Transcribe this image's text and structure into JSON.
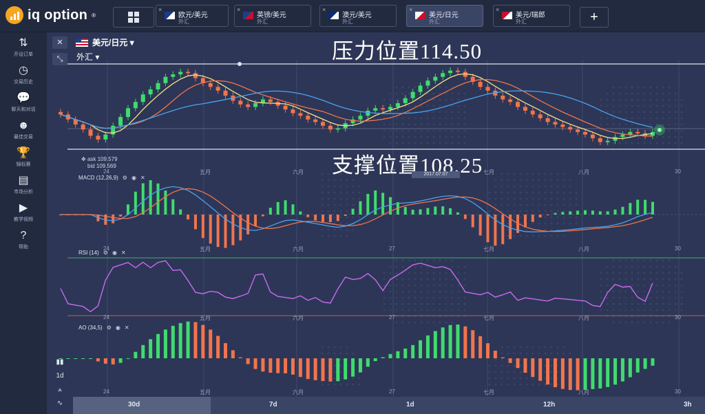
{
  "app": {
    "logo_text": "iq option",
    "logo_mark": "®"
  },
  "tabs": [
    {
      "name": "欧元/美元",
      "sub": "外汇",
      "active": false,
      "flags": [
        "#1a3a8f",
        "#ffffff"
      ]
    },
    {
      "name": "英镑/美元",
      "sub": "外汇",
      "active": false,
      "flags": [
        "#1f3e8a",
        "#c8102e"
      ]
    },
    {
      "name": "澳元/美元",
      "sub": "外汇",
      "active": false,
      "flags": [
        "#0c2a7a",
        "#ffffff"
      ]
    },
    {
      "name": "美元/日元",
      "sub": "外汇",
      "active": true,
      "flags": [
        "#ffffff",
        "#c8102e"
      ]
    },
    {
      "name": "美元/瑞郎",
      "sub": "外汇",
      "active": false,
      "flags": [
        "#c8102e",
        "#ffffff"
      ]
    }
  ],
  "tab_close_glyph": "×",
  "plus_glyph": "+",
  "sidebar": [
    {
      "icon": "⇅",
      "icon_name": "arrows-updown-icon",
      "label": "开设订单"
    },
    {
      "icon": "◷",
      "icon_name": "clock-icon",
      "label": "交易历史"
    },
    {
      "icon": "💬",
      "icon_name": "chat-icon",
      "label": "聊天和对话"
    },
    {
      "icon": "☻",
      "icon_name": "trader-icon",
      "label": "最佳交易"
    },
    {
      "icon": "🏆",
      "icon_name": "trophy-icon",
      "label": "锦标赛"
    },
    {
      "icon": "▤",
      "icon_name": "market-icon",
      "label": "市场分析"
    },
    {
      "icon": "▶",
      "icon_name": "play-icon",
      "label": "教学视频"
    },
    {
      "icon": "?",
      "icon_name": "help-icon",
      "label": "帮助"
    }
  ],
  "chart_header": {
    "close_glyph": "✕",
    "expand_glyph": "⤡",
    "pair": "美元/日元 ▾",
    "market": "外汇 ▾"
  },
  "annotations": {
    "resistance": "压力位置114.50",
    "support": "支撑位置108.25"
  },
  "quote": {
    "ask": "ask 109.579",
    "bid": "bid 109.569",
    "icon": "✥"
  },
  "date_badge": "2017.07.07",
  "indicators": {
    "macd": "MACD (12,26,9)",
    "rsi": "RSI (14)",
    "ao": "AO (34,5)",
    "settings_glyph": "⚙",
    "eye_glyph": "◉",
    "close_glyph": "✕"
  },
  "x_ticks": [
    "24",
    "五月",
    "六月",
    "27",
    "七月",
    "八月",
    "30"
  ],
  "tools": [
    "▮▮",
    "1d",
    "⟑",
    "∿"
  ],
  "timeframes": [
    "30d",
    "7d",
    "1d",
    "12h",
    "3h"
  ],
  "colors": {
    "up": "#3fdc6e",
    "down": "#f2744c",
    "ma_fast": "#f5e38a",
    "ma_mid": "#f2744c",
    "ma_slow": "#4aa3f0",
    "rsi": "#c86cf0",
    "macd_line": "#4aa3f0",
    "signal_line": "#f2744c"
  },
  "chart_data": [
    {
      "type": "candlestick",
      "title": "美元/日元",
      "ohlc_close": [
        111.0,
        110.6,
        110.2,
        109.8,
        109.3,
        109.0,
        109.4,
        110.1,
        110.8,
        111.5,
        112.0,
        112.6,
        113.0,
        113.5,
        114.0,
        114.2,
        114.4,
        114.3,
        113.9,
        113.5,
        113.2,
        112.9,
        112.5,
        112.1,
        111.8,
        111.6,
        111.9,
        112.2,
        112.0,
        111.7,
        111.4,
        111.1,
        110.9,
        110.6,
        110.4,
        110.1,
        109.8,
        109.9,
        110.3,
        110.6,
        110.9,
        111.3,
        111.5,
        111.4,
        111.6,
        111.9,
        112.3,
        112.8,
        113.3,
        113.7,
        114.0,
        114.3,
        114.5,
        114.4,
        114.0,
        113.6,
        113.2,
        112.9,
        112.5,
        112.2,
        112.0,
        111.6,
        111.3,
        111.0,
        110.7,
        110.4,
        110.2,
        110.0,
        109.8,
        109.6,
        109.4,
        109.1,
        108.8,
        108.9,
        109.2,
        109.4,
        109.6,
        109.5,
        109.3,
        109.6
      ],
      "ylabel": "",
      "overlays": [
        "MA fast",
        "MA mid",
        "MA slow"
      ]
    },
    {
      "type": "bar",
      "title": "MACD (12,26,9)"
    },
    {
      "type": "line",
      "title": "RSI (14)",
      "ylim": [
        0,
        100
      ]
    },
    {
      "type": "bar",
      "title": "AO (34,5)"
    }
  ]
}
